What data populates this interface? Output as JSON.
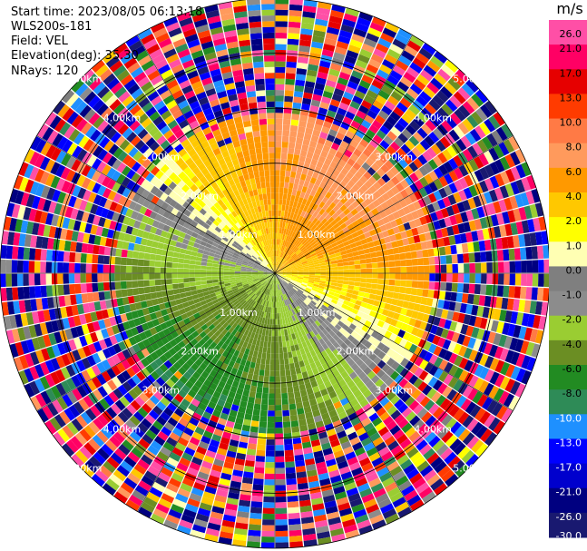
{
  "header": {
    "start_time": "Start time: 2023/08/05 06:13:18",
    "instrument": "WLS200s-181",
    "field": "Field: VEL",
    "elevation": "Elevation(deg): 35.30",
    "nrays": "NRays: 120"
  },
  "colorbar": {
    "units": "m/s",
    "ticks": [
      "26.0",
      "21.0",
      "17.0",
      "13.0",
      "10.0",
      "8.0",
      "6.0",
      "4.0",
      "2.0",
      "1.0",
      "0.0",
      "-1.0",
      "-2.0",
      "-4.0",
      "-6.0",
      "-8.0",
      "-10.0",
      "-13.0",
      "-17.0",
      "-21.0",
      "-26.0",
      "-30.0"
    ],
    "colors": [
      "#ff4fa6",
      "#ff0064",
      "#e60000",
      "#ff3b00",
      "#ff7a45",
      "#ff9a5c",
      "#ff9900",
      "#ffc800",
      "#ffff00",
      "#ffffb3",
      "#7f7f7f",
      "#8c8c8c",
      "#9acd32",
      "#6b8e23",
      "#228b22",
      "#2e8b57",
      "#1e90ff",
      "#0000ff",
      "#0000cd",
      "#000080",
      "#191970"
    ]
  },
  "chart_data": {
    "type": "heatmap",
    "projection": "polar PPI",
    "field": "VEL",
    "units": "m/s",
    "nrays": 120,
    "vmin": -30.0,
    "vmax": 26.0,
    "range_rings_km": [
      1.0,
      2.0,
      3.0,
      4.0,
      5.0
    ],
    "ring_labels": [
      "1.00km",
      "2.00km",
      "3.00km",
      "4.00km",
      "5.00km"
    ],
    "max_range_km": 5.0,
    "noise_beyond_km": 2.9,
    "pattern_notes": "positive (warm) velocities in north / northeast sector, negative (green) in south / southwest, noisy outer ranges"
  }
}
